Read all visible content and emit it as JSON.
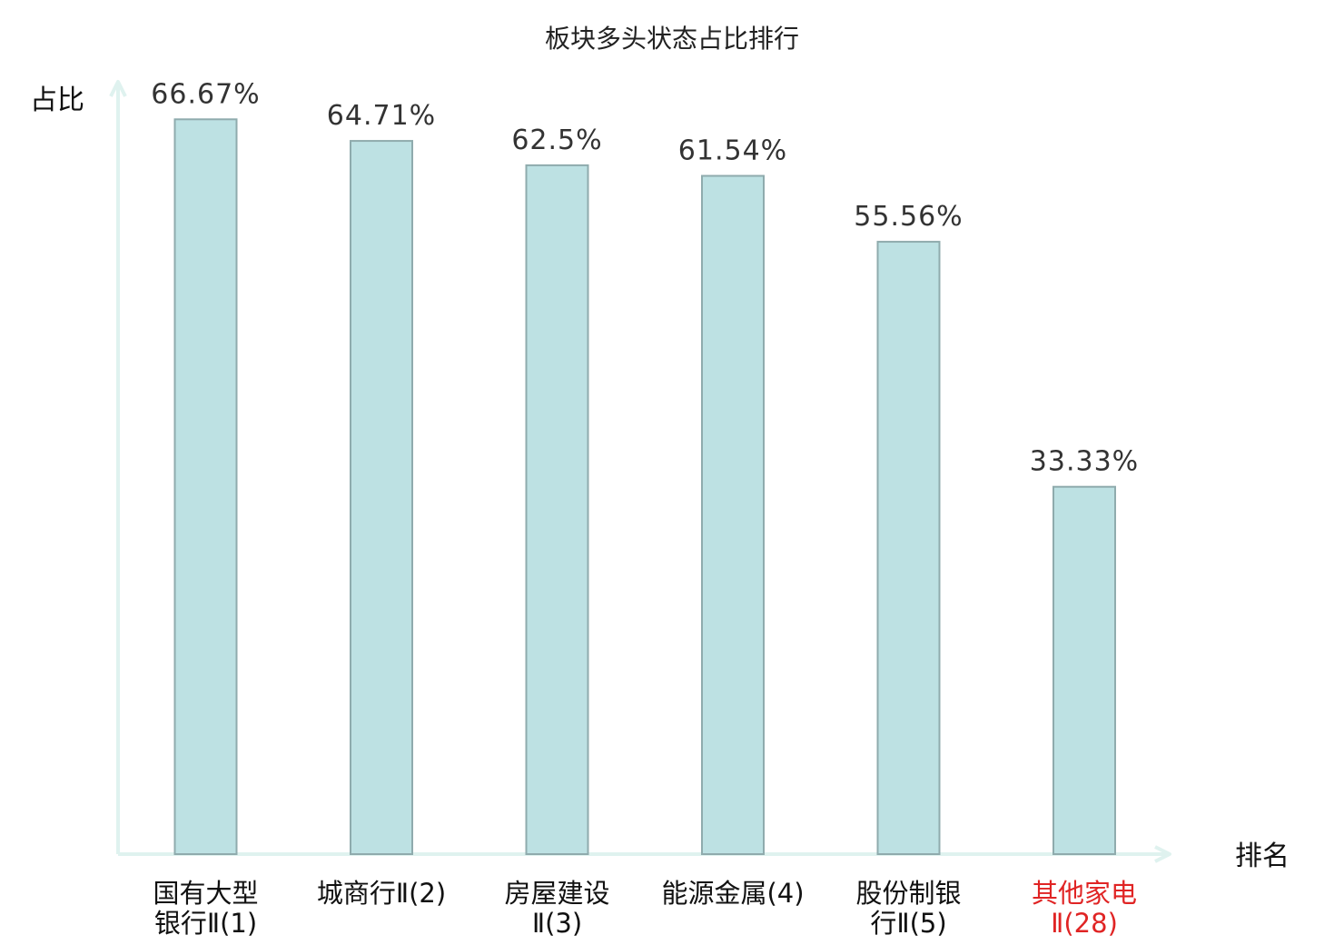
{
  "chart_data": {
    "type": "bar",
    "title": "板块多头状态占比排行",
    "ylabel": "占比",
    "xlabel": "排名",
    "ylim": [
      0,
      70
    ],
    "grid": false,
    "categories": [
      [
        "国有大型",
        "银行Ⅱ(1)"
      ],
      [
        "城商行Ⅱ(2)"
      ],
      [
        "房屋建设",
        "Ⅱ(3)"
      ],
      [
        "能源金属(4)"
      ],
      [
        "股份制银",
        "行Ⅱ(5)"
      ],
      [
        "其他家电",
        "Ⅱ(28)"
      ]
    ],
    "values": [
      66.67,
      64.71,
      62.5,
      61.54,
      55.56,
      33.33
    ],
    "value_labels": [
      "66.67%",
      "64.71%",
      "62.5%",
      "61.54%",
      "55.56%",
      "33.33%"
    ],
    "highlight_index": 5,
    "colors": {
      "bar_fill": "#bde1e3",
      "bar_stroke": "#8fabad",
      "axis": "#dff2ef",
      "highlight_text": "#e02424"
    }
  }
}
